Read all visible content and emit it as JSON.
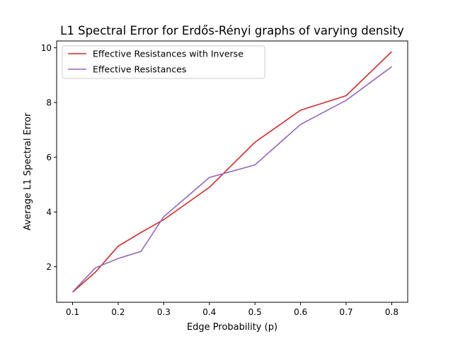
{
  "chart_data": {
    "type": "line",
    "title": "L1 Spectral Error for Erdős-Rényi graphs of varying density",
    "xlabel": "Edge Probability (p)",
    "ylabel": "Average L1 Spectral Error",
    "xlim": [
      0.065,
      0.835
    ],
    "ylim": [
      0.7,
      10.25
    ],
    "xticks": [
      0.1,
      0.2,
      0.3,
      0.4,
      0.5,
      0.6,
      0.7,
      0.8
    ],
    "xtick_labels": [
      "0.1",
      "0.2",
      "0.3",
      "0.4",
      "0.5",
      "0.6",
      "0.7",
      "0.8"
    ],
    "yticks": [
      2,
      4,
      6,
      8,
      10
    ],
    "ytick_labels": [
      "2",
      "4",
      "6",
      "8",
      "10"
    ],
    "grid": false,
    "legend_position": "top-left",
    "series": [
      {
        "name": "Effective Resistances with Inverse",
        "color": "#d62728",
        "x": [
          0.1,
          0.15,
          0.2,
          0.25,
          0.3,
          0.4,
          0.5,
          0.6,
          0.7,
          0.8
        ],
        "y": [
          1.07,
          1.8,
          2.75,
          3.25,
          3.72,
          4.9,
          6.55,
          7.72,
          8.25,
          9.86
        ]
      },
      {
        "name": "Effective Resistances",
        "color": "#9467bd",
        "x": [
          0.1,
          0.15,
          0.2,
          0.25,
          0.3,
          0.4,
          0.5,
          0.6,
          0.7,
          0.8
        ],
        "y": [
          1.08,
          1.96,
          2.3,
          2.56,
          3.83,
          5.26,
          5.72,
          7.2,
          8.08,
          9.31
        ]
      }
    ]
  }
}
